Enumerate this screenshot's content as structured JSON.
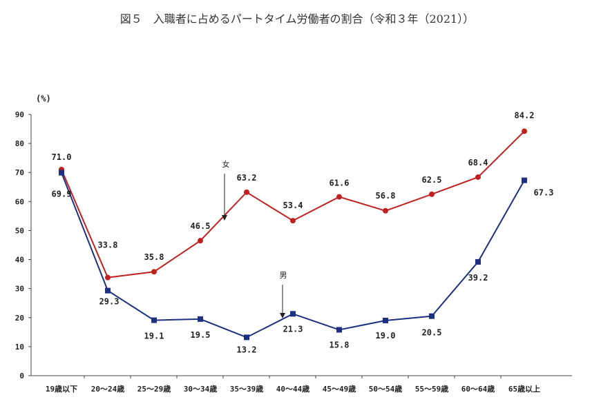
{
  "chart_data": {
    "type": "line",
    "title": "図５　入職者に占めるパートタイム労働者の割合（令和３年（2021））",
    "ylabel": "(%)",
    "xlabel": "",
    "ylim": [
      0,
      90
    ],
    "yticks": [
      0,
      10,
      20,
      30,
      40,
      50,
      60,
      70,
      80,
      90
    ],
    "grid": false,
    "categories": [
      "19歳以下",
      "20～24歳",
      "25～29歳",
      "30～34歳",
      "35～39歳",
      "40～44歳",
      "45～49歳",
      "50～54歳",
      "55～59歳",
      "60～64歳",
      "65歳以上"
    ],
    "series": [
      {
        "name": "女",
        "color": "#c0201f",
        "marker": "circle",
        "values": [
          71.0,
          33.8,
          35.8,
          46.5,
          63.2,
          53.4,
          61.6,
          56.8,
          62.5,
          68.4,
          84.2
        ]
      },
      {
        "name": "男",
        "color": "#1c2f80",
        "marker": "square",
        "values": [
          69.9,
          29.3,
          19.1,
          19.5,
          13.2,
          21.3,
          15.8,
          19.0,
          20.5,
          39.2,
          67.3
        ]
      }
    ]
  }
}
